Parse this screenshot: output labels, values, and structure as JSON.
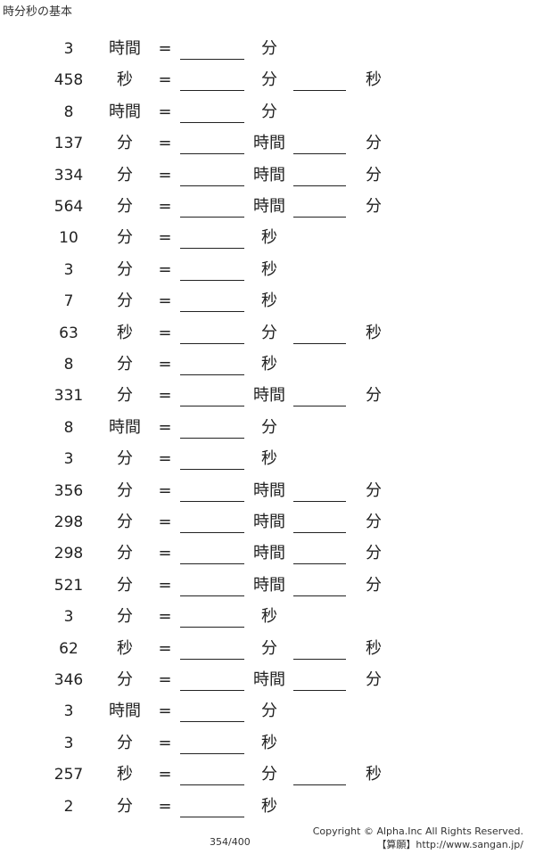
{
  "title": "時分秒の基本",
  "equals": "=",
  "rows": [
    {
      "n": "3",
      "u1": "時間",
      "u2": "分",
      "u3": ""
    },
    {
      "n": "458",
      "u1": "秒",
      "u2": "分",
      "u3": "秒"
    },
    {
      "n": "8",
      "u1": "時間",
      "u2": "分",
      "u3": ""
    },
    {
      "n": "137",
      "u1": "分",
      "u2": "時間",
      "u3": "分"
    },
    {
      "n": "334",
      "u1": "分",
      "u2": "時間",
      "u3": "分"
    },
    {
      "n": "564",
      "u1": "分",
      "u2": "時間",
      "u3": "分"
    },
    {
      "n": "10",
      "u1": "分",
      "u2": "秒",
      "u3": ""
    },
    {
      "n": "3",
      "u1": "分",
      "u2": "秒",
      "u3": ""
    },
    {
      "n": "7",
      "u1": "分",
      "u2": "秒",
      "u3": ""
    },
    {
      "n": "63",
      "u1": "秒",
      "u2": "分",
      "u3": "秒"
    },
    {
      "n": "8",
      "u1": "分",
      "u2": "秒",
      "u3": ""
    },
    {
      "n": "331",
      "u1": "分",
      "u2": "時間",
      "u3": "分"
    },
    {
      "n": "8",
      "u1": "時間",
      "u2": "分",
      "u3": ""
    },
    {
      "n": "3",
      "u1": "分",
      "u2": "秒",
      "u3": ""
    },
    {
      "n": "356",
      "u1": "分",
      "u2": "時間",
      "u3": "分"
    },
    {
      "n": "298",
      "u1": "分",
      "u2": "時間",
      "u3": "分"
    },
    {
      "n": "298",
      "u1": "分",
      "u2": "時間",
      "u3": "分"
    },
    {
      "n": "521",
      "u1": "分",
      "u2": "時間",
      "u3": "分"
    },
    {
      "n": "3",
      "u1": "分",
      "u2": "秒",
      "u3": ""
    },
    {
      "n": "62",
      "u1": "秒",
      "u2": "分",
      "u3": "秒"
    },
    {
      "n": "346",
      "u1": "分",
      "u2": "時間",
      "u3": "分"
    },
    {
      "n": "3",
      "u1": "時間",
      "u2": "分",
      "u3": ""
    },
    {
      "n": "3",
      "u1": "分",
      "u2": "秒",
      "u3": ""
    },
    {
      "n": "257",
      "u1": "秒",
      "u2": "分",
      "u3": "秒"
    },
    {
      "n": "2",
      "u1": "分",
      "u2": "秒",
      "u3": ""
    }
  ],
  "footer": {
    "copyright": "Copyright © Alpha.Inc All Rights Reserved.",
    "site": "【算願】http://www.sangan.jp/",
    "page": "354/400"
  }
}
